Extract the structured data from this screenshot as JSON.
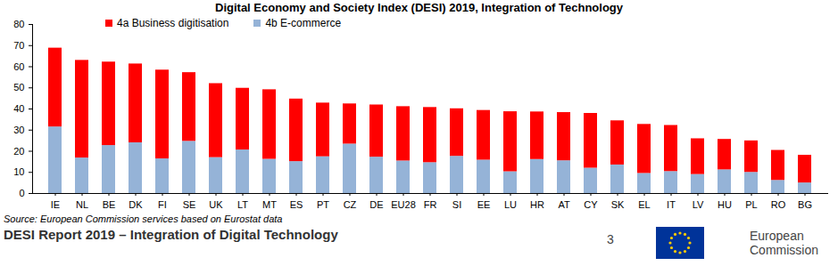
{
  "chart_data": {
    "type": "bar",
    "stacked": true,
    "title": "Digital Economy and Society Index (DESI) 2019, Integration of Technology",
    "categories": [
      "IE",
      "NL",
      "BE",
      "DK",
      "FI",
      "SE",
      "UK",
      "LT",
      "MT",
      "ES",
      "PT",
      "CZ",
      "DE",
      "EU28",
      "FR",
      "SI",
      "EE",
      "LU",
      "HR",
      "AT",
      "CY",
      "SK",
      "EL",
      "IT",
      "LV",
      "HU",
      "PL",
      "RO",
      "BG"
    ],
    "series": [
      {
        "name": "4a Business digitisation",
        "color": "#ff0000",
        "values": [
          37.3,
          46.2,
          39.5,
          37.3,
          42.0,
          32.5,
          35.0,
          29.2,
          32.9,
          29.6,
          25.4,
          19.0,
          24.7,
          25.7,
          26.1,
          22.5,
          23.5,
          28.4,
          22.5,
          22.8,
          25.9,
          20.9,
          23.2,
          21.8,
          16.9,
          14.4,
          14.9,
          14.2,
          13.1
        ]
      },
      {
        "name": "4b E-commerce",
        "color": "#95b3d7",
        "values": [
          31.5,
          16.8,
          22.7,
          24.0,
          16.4,
          24.7,
          17.0,
          20.6,
          16.2,
          15.1,
          17.4,
          23.4,
          17.2,
          15.4,
          14.6,
          17.6,
          15.8,
          10.3,
          16.1,
          15.5,
          12.0,
          13.5,
          9.5,
          10.4,
          9.0,
          11.2,
          10.0,
          6.2,
          5.0
        ]
      }
    ],
    "ylim": [
      0,
      80
    ],
    "yticks": [
      0,
      10,
      20,
      30,
      40,
      50,
      60,
      70,
      80
    ],
    "grid": false,
    "legend": "top-left",
    "source": "Source: European Commission services based on Eurostat data",
    "footer": "DESI Report 2019 – Integration of Digital Technology",
    "page_number": 3,
    "logo_text": [
      "European",
      "Commission"
    ]
  }
}
